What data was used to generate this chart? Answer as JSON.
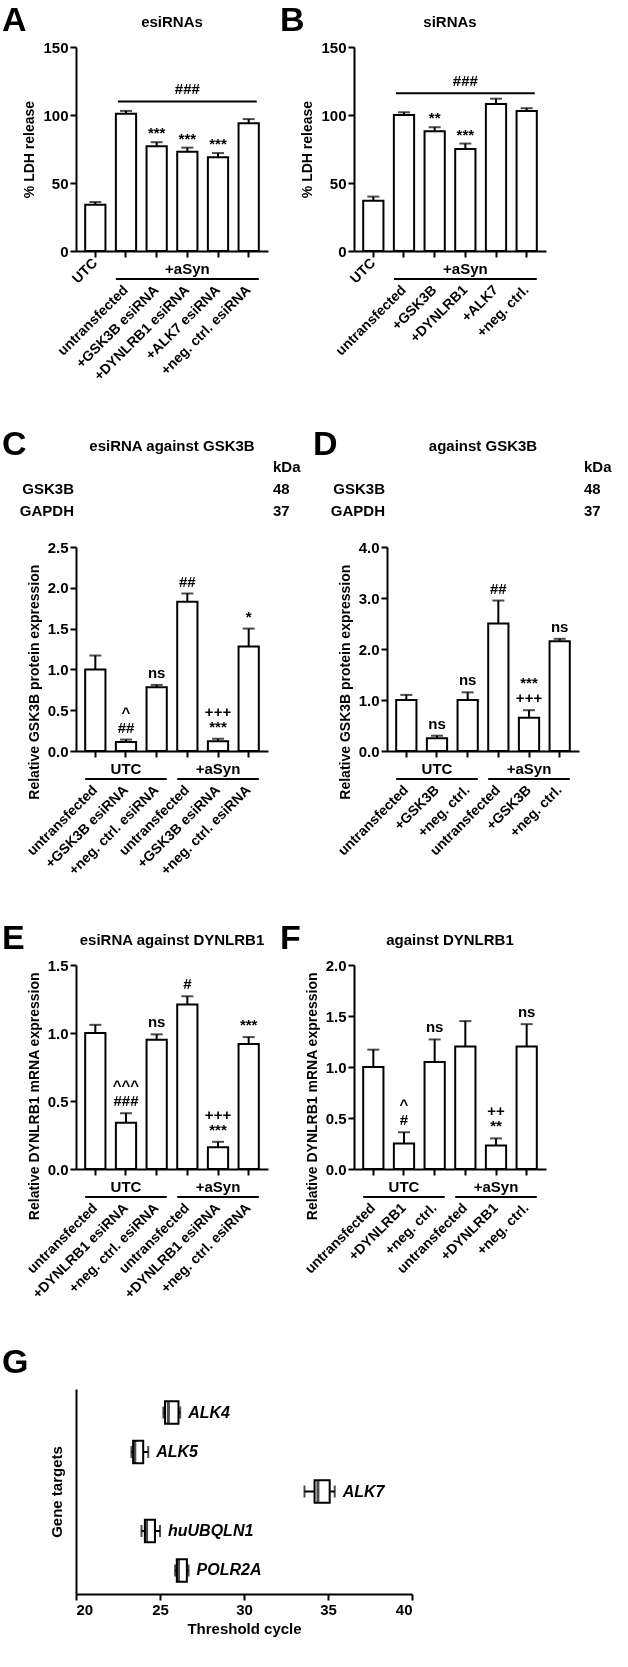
{
  "chart_data": [
    {
      "type": "bar",
      "title": "esiRNAs",
      "ylabel": "% LDH release",
      "categories": [
        "UTC",
        "untransfected",
        "+GSK3B esiRNA",
        "+DYNLRB1 esiRNA",
        "+ALK7 esiRNA",
        "+neg. ctrl. esiRNA"
      ],
      "values": [
        34,
        101,
        77,
        73,
        69,
        94
      ],
      "errors": [
        [
          34,
          36
        ],
        [
          101,
          103
        ],
        [
          77,
          80
        ],
        [
          73,
          76
        ],
        [
          69,
          72
        ],
        [
          94,
          97
        ]
      ],
      "color": "#ffffff",
      "ylim": [
        0,
        150
      ],
      "yticks": [
        0,
        50,
        100,
        150
      ],
      "ref_lines": [
        {
          "axis": "y",
          "value": 110,
          "label": "###"
        }
      ],
      "annotations": [
        "A",
        {
          "text": "***",
          "x": "+GSK3B esiRNA",
          "y": 80
        },
        {
          "text": "***",
          "x": "+DYNLRB1 esiRNA",
          "y": 76
        },
        {
          "text": "***",
          "x": "+ALK7 esiRNA",
          "y": 72
        },
        "+aSyn"
      ]
    },
    {
      "type": "bar",
      "title": "siRNAs",
      "ylabel": "% LDH release",
      "categories": [
        "UTC",
        "untransfected",
        "+GSK3B",
        "+DYNLRB1",
        "+ALK7",
        "+neg. ctrl."
      ],
      "values": [
        37,
        100,
        88,
        75,
        108,
        103
      ],
      "errors": [
        [
          37,
          40
        ],
        [
          100,
          102
        ],
        [
          88,
          91
        ],
        [
          75,
          79
        ],
        [
          108,
          112
        ],
        [
          103,
          105
        ]
      ],
      "color": "#ffffff",
      "ylim": [
        0,
        150
      ],
      "yticks": [
        0,
        50,
        100,
        150
      ],
      "ref_lines": [
        {
          "axis": "y",
          "value": 116,
          "label": "###"
        }
      ],
      "annotations": [
        "B",
        {
          "text": "**",
          "x": "+GSK3B",
          "y": 91
        },
        {
          "text": "***",
          "x": "+DYNLRB1",
          "y": 79
        },
        "+aSyn"
      ]
    },
    {
      "type": "bar",
      "title": "esiRNA against GSK3B",
      "ylabel": "Relative GSK3B protein expression",
      "categories": [
        "untransfected",
        "+GSK3B esiRNA",
        "+neg. ctrl. esiRNA",
        "untransfected",
        "+GSK3B esiRNA",
        "+neg. ctrl. esiRNA"
      ],
      "values": [
        1.0,
        0.11,
        0.78,
        1.83,
        0.12,
        1.28
      ],
      "errors": [
        [
          1.0,
          1.17
        ],
        [
          0.11,
          0.14
        ],
        [
          0.78,
          0.81
        ],
        [
          1.83,
          1.93
        ],
        [
          0.12,
          0.15
        ],
        [
          1.28,
          1.5
        ]
      ],
      "color": "#ffffff",
      "ylim": [
        0,
        2.5
      ],
      "yticks": [
        {
          "value": 0,
          "label": "0.0"
        },
        0.5,
        {
          "value": 1,
          "label": "1.0"
        },
        1.5,
        {
          "value": 2,
          "label": "2.0"
        },
        2.5
      ],
      "value_labels": [
        null,
        "^\n##",
        "ns",
        "##",
        "+++\n***",
        "*"
      ],
      "annotations": [
        "C",
        "kDa",
        "GSK3B",
        "48",
        "GAPDH",
        "37",
        "UTC",
        "+aSyn"
      ]
    },
    {
      "type": "bar",
      "title": "against GSK3B",
      "ylabel": "Relative GSK3B protein expression",
      "categories": [
        "untransfected",
        "+GSK3B",
        "+neg. ctrl.",
        "untransfected",
        "+GSK3B",
        "+neg. ctrl."
      ],
      "values": [
        1.0,
        0.25,
        1.0,
        2.5,
        0.65,
        2.15
      ],
      "errors": [
        [
          1.0,
          1.1
        ],
        [
          0.25,
          0.3
        ],
        [
          1.0,
          1.15
        ],
        [
          2.5,
          2.95
        ],
        [
          0.65,
          0.8
        ],
        [
          2.15,
          2.2
        ]
      ],
      "color": "#ffffff",
      "ylim": [
        0,
        4
      ],
      "yticks": [
        {
          "value": 0,
          "label": "0.0"
        },
        {
          "value": 1,
          "label": "1.0"
        },
        {
          "value": 2,
          "label": "2.0"
        },
        {
          "value": 3,
          "label": "3.0"
        },
        {
          "value": 4,
          "label": "4.0"
        }
      ],
      "value_labels": [
        null,
        "ns",
        "ns",
        "##",
        "***\n+++",
        "ns"
      ],
      "annotations": [
        "D",
        "kDa",
        "GSK3B",
        "48",
        "GAPDH",
        "37",
        "UTC",
        "+aSyn"
      ]
    },
    {
      "type": "bar",
      "title": "esiRNA against DYNLRB1",
      "ylabel": "Relative DYNLRB1 mRNA expression",
      "categories": [
        "untransfected",
        "+DYNLRB1 esiRNA",
        "+neg. ctrl. esiRNA",
        "untransfected",
        "+DYNLRB1 esiRNA",
        "+neg. ctrl. esiRNA"
      ],
      "values": [
        1.0,
        0.34,
        0.95,
        1.21,
        0.16,
        0.92
      ],
      "errors": [
        [
          1.0,
          1.06
        ],
        [
          0.34,
          0.41
        ],
        [
          0.95,
          0.99
        ],
        [
          1.21,
          1.27
        ],
        [
          0.16,
          0.2
        ],
        [
          0.92,
          0.97
        ]
      ],
      "color": "#ffffff",
      "ylim": [
        0,
        1.5
      ],
      "yticks": [
        {
          "value": 0,
          "label": "0.0"
        },
        0.5,
        {
          "value": 1,
          "label": "1.0"
        },
        1.5
      ],
      "value_labels": [
        null,
        "^^^\n###",
        "ns",
        "#",
        "+++\n***",
        "***"
      ],
      "annotations": [
        "E",
        "UTC",
        "+aSyn"
      ]
    },
    {
      "type": "bar",
      "title": "against DYNLRB1",
      "ylabel": "Relative DYNLRB1 mRNA expression",
      "categories": [
        "untransfected",
        "+DYNLRB1",
        "+neg. ctrl.",
        "untransfected",
        "+DYNLRB1",
        "+neg. ctrl."
      ],
      "values": [
        1.0,
        0.25,
        1.05,
        1.2,
        0.23,
        1.2
      ],
      "errors": [
        [
          1.0,
          1.17
        ],
        [
          0.25,
          0.36
        ],
        [
          1.05,
          1.27
        ],
        [
          1.2,
          1.45
        ],
        [
          0.23,
          0.3
        ],
        [
          1.2,
          1.42
        ]
      ],
      "color": "#ffffff",
      "ylim": [
        0,
        2
      ],
      "yticks": [
        {
          "value": 0,
          "label": "0.0"
        },
        0.5,
        {
          "value": 1,
          "label": "1.0"
        },
        1.5,
        {
          "value": 2,
          "label": "2.0"
        }
      ],
      "value_labels": [
        null,
        "^\n#",
        "ns",
        null,
        "++\n**",
        "ns"
      ],
      "annotations": [
        "F",
        "UTC",
        "+aSyn"
      ]
    },
    {
      "type": "box",
      "orientation": "horizontal",
      "xlabel": "Threshold cycle",
      "ylabel": "Gene targets",
      "categories": [
        "ALK4",
        "ALK5",
        "ALK7",
        "huUBQLN1",
        "POLR2A"
      ],
      "color": "#000000",
      "xlim": [
        20,
        40
      ],
      "xticks": [
        20,
        25,
        30,
        35,
        40
      ],
      "tick_labels": "x",
      "boxes": [
        {
          "low": 25.2,
          "q1": 25.3,
          "median": 25.5,
          "q3": 26.1,
          "high": 26.2
        },
        {
          "low": 23.3,
          "q1": 23.4,
          "median": 23.5,
          "q3": 24.0,
          "high": 24.3
        },
        {
          "low": 33.6,
          "q1": 34.2,
          "median": 34.4,
          "q3": 35.1,
          "high": 35.4
        },
        {
          "low": 23.9,
          "q1": 24.1,
          "median": 24.2,
          "q3": 24.7,
          "high": 25.0
        },
        {
          "low": 25.9,
          "q1": 26.0,
          "median": 26.1,
          "q3": 26.6,
          "high": 26.7
        }
      ],
      "annotations": [
        "G"
      ]
    }
  ]
}
